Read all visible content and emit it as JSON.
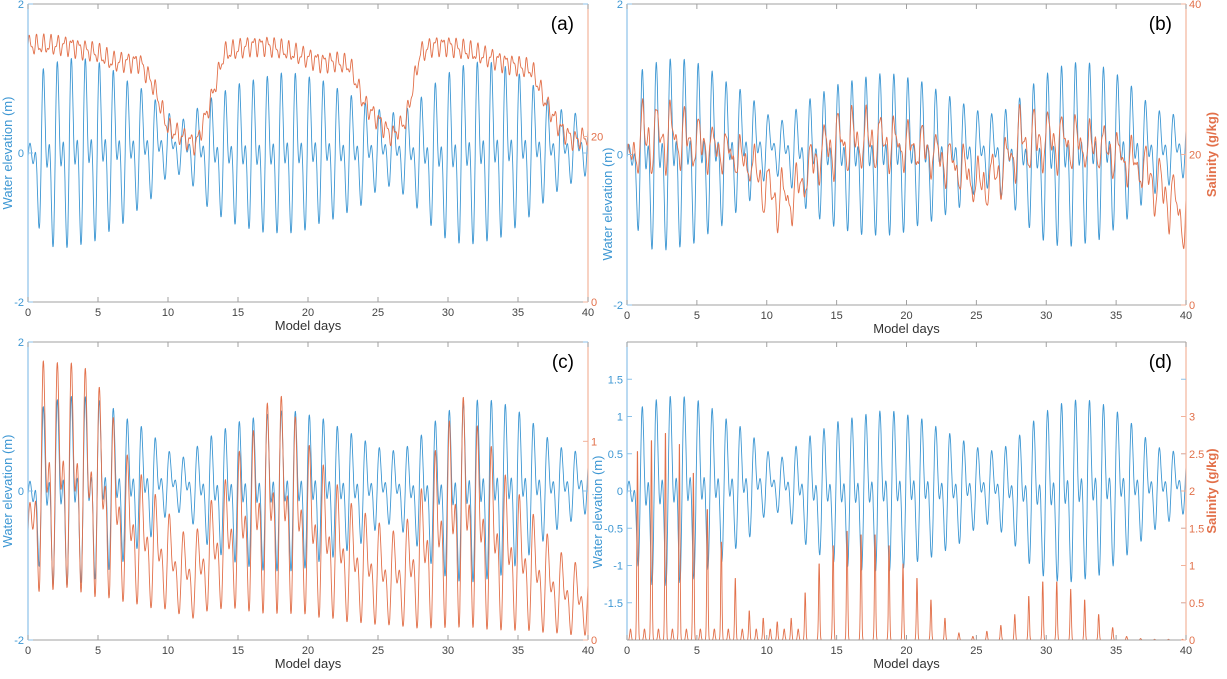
{
  "colors": {
    "water": "#3d97d3",
    "salinity": "#e2704a",
    "left_axis": "#8cc2e8",
    "right_axis": "#f2b39b",
    "frame": "#a0a0a0"
  },
  "chart_data": [
    {
      "panel": "(a)",
      "type": "line",
      "xlabel": "Model days",
      "ylabel_left": "Water elevation (m)",
      "ylabel_right": "",
      "xlim": [
        0,
        40
      ],
      "xticks": [
        0,
        5,
        10,
        15,
        20,
        25,
        30,
        35,
        40
      ],
      "ylim_left": [
        -2,
        2
      ],
      "yticks_left": [
        -2,
        0,
        2
      ],
      "ylim_right": [
        0,
        36
      ],
      "yticks_right": [
        0,
        20
      ],
      "series": [
        {
          "axis": "left",
          "kind": "tidal",
          "x_days": "daily 0-40",
          "daily_max": [
            0.0,
            1.15,
            1.25,
            1.3,
            1.3,
            1.25,
            1.15,
            1.0,
            0.9,
            0.75,
            0.55,
            0.45,
            0.6,
            0.75,
            0.85,
            0.95,
            1.0,
            1.05,
            1.1,
            1.1,
            1.05,
            1.0,
            0.9,
            0.8,
            0.7,
            0.6,
            0.55,
            0.6,
            0.75,
            0.95,
            1.1,
            1.2,
            1.25,
            1.25,
            1.2,
            1.1,
            0.95,
            0.75,
            0.6,
            0.55,
            0.5
          ],
          "daily_min": [
            -0.2,
            -1.25,
            -1.3,
            -1.3,
            -1.25,
            -1.2,
            -1.05,
            -0.95,
            -0.75,
            -0.6,
            -0.3,
            -0.3,
            -0.5,
            -0.8,
            -0.9,
            -1.0,
            -1.05,
            -1.1,
            -1.1,
            -1.1,
            -1.05,
            -0.95,
            -0.9,
            -0.8,
            -0.7,
            -0.5,
            -0.45,
            -0.6,
            -0.8,
            -1.05,
            -1.2,
            -1.25,
            -1.25,
            -1.2,
            -1.15,
            -1.0,
            -0.85,
            -0.65,
            -0.5,
            -0.4,
            -0.3
          ]
        },
        {
          "axis": "right",
          "kind": "smooth",
          "daily_value": [
            31,
            31,
            31,
            31,
            30.5,
            30,
            29,
            29,
            29,
            26,
            21,
            20,
            19,
            24,
            30,
            30.5,
            31,
            31,
            30.5,
            30,
            29.5,
            29,
            29,
            28.5,
            24,
            22,
            20,
            22,
            30,
            31,
            31,
            30.5,
            30,
            29.5,
            29,
            28.5,
            28,
            24,
            21,
            19.5,
            20
          ]
        }
      ]
    },
    {
      "panel": "(b)",
      "type": "line",
      "xlabel": "Model days",
      "ylabel_left": "Water elevation (m)",
      "ylabel_right": "Salinity (g/kg)",
      "xlim": [
        0,
        40
      ],
      "xticks": [
        0,
        5,
        10,
        15,
        20,
        25,
        30,
        35,
        40
      ],
      "ylim_left": [
        -2,
        2
      ],
      "yticks_left": [
        -2,
        0,
        2
      ],
      "ylim_right": [
        0,
        40
      ],
      "yticks_right": [
        0,
        20,
        40
      ],
      "series": [
        {
          "axis": "left",
          "kind": "tidal",
          "daily_max": [
            0.0,
            1.15,
            1.25,
            1.3,
            1.3,
            1.25,
            1.15,
            1.0,
            0.9,
            0.75,
            0.55,
            0.45,
            0.6,
            0.75,
            0.85,
            0.95,
            1.0,
            1.05,
            1.1,
            1.1,
            1.05,
            1.0,
            0.9,
            0.8,
            0.7,
            0.6,
            0.55,
            0.6,
            0.75,
            0.95,
            1.1,
            1.2,
            1.25,
            1.25,
            1.2,
            1.1,
            0.95,
            0.75,
            0.6,
            0.55,
            0.5
          ],
          "daily_min": [
            -0.2,
            -1.25,
            -1.3,
            -1.3,
            -1.25,
            -1.2,
            -1.05,
            -0.95,
            -0.75,
            -0.6,
            -0.3,
            -0.3,
            -0.5,
            -0.8,
            -0.9,
            -1.0,
            -1.05,
            -1.1,
            -1.1,
            -1.1,
            -1.05,
            -0.95,
            -0.9,
            -0.8,
            -0.7,
            -0.5,
            -0.45,
            -0.6,
            -0.8,
            -1.05,
            -1.2,
            -1.25,
            -1.25,
            -1.2,
            -1.15,
            -1.0,
            -0.85,
            -0.65,
            -0.5,
            -0.4,
            -0.3
          ]
        },
        {
          "axis": "right",
          "kind": "tidal",
          "daily_max": [
            20,
            27,
            27,
            27,
            26,
            25,
            24,
            23,
            22,
            21,
            19,
            18,
            18,
            21,
            24,
            26,
            26,
            26,
            25.5,
            25,
            24,
            24,
            23,
            22,
            21,
            19,
            20,
            22,
            26,
            26,
            26,
            25.5,
            25,
            24,
            24,
            23,
            22,
            21,
            20,
            18,
            15
          ],
          "daily_min": [
            18,
            17,
            17.5,
            18,
            18,
            18,
            18,
            18,
            17,
            16,
            11,
            10,
            11,
            15,
            17,
            17,
            17.5,
            18,
            18,
            18,
            18,
            18,
            17,
            16,
            15,
            13,
            13,
            15,
            17,
            17.5,
            18,
            18,
            18,
            18,
            18,
            17,
            16,
            15,
            11,
            10,
            7
          ]
        }
      ]
    },
    {
      "panel": "(c)",
      "type": "line",
      "xlabel": "Model days",
      "ylabel_left": "Water elevation (m)",
      "ylabel_right": "",
      "xlim": [
        0,
        40
      ],
      "xticks": [
        0,
        5,
        10,
        15,
        20,
        25,
        30,
        35,
        40
      ],
      "ylim_left": [
        -2,
        2
      ],
      "yticks_left": [
        -2,
        0,
        2
      ],
      "ylim_right": [
        0,
        1.5
      ],
      "yticks_right": [
        0,
        1
      ],
      "series": [
        {
          "axis": "left",
          "kind": "tidal",
          "daily_max": [
            0.0,
            1.15,
            1.25,
            1.3,
            1.3,
            1.25,
            1.15,
            1.0,
            0.9,
            0.75,
            0.55,
            0.45,
            0.6,
            0.75,
            0.85,
            0.95,
            1.0,
            1.05,
            1.1,
            1.1,
            1.05,
            1.0,
            0.9,
            0.8,
            0.7,
            0.6,
            0.55,
            0.6,
            0.75,
            0.95,
            1.1,
            1.2,
            1.25,
            1.25,
            1.2,
            1.1,
            0.95,
            0.75,
            0.6,
            0.55,
            0.5
          ],
          "daily_min": [
            -0.2,
            -1.25,
            -1.3,
            -1.3,
            -1.25,
            -1.2,
            -1.05,
            -0.95,
            -0.75,
            -0.6,
            -0.3,
            -0.3,
            -0.5,
            -0.8,
            -0.9,
            -1.0,
            -1.05,
            -1.1,
            -1.1,
            -1.1,
            -1.05,
            -0.95,
            -0.9,
            -0.8,
            -0.7,
            -0.5,
            -0.45,
            -0.6,
            -0.8,
            -1.05,
            -1.2,
            -1.25,
            -1.25,
            -1.2,
            -1.15,
            -1.0,
            -0.85,
            -0.65,
            -0.5,
            -0.4,
            -0.3
          ]
        },
        {
          "axis": "right",
          "kind": "tidal",
          "daily_max": [
            0.6,
            1.42,
            1.41,
            1.41,
            1.39,
            1.3,
            1.15,
            0.95,
            0.85,
            0.75,
            0.65,
            0.55,
            0.55,
            0.7,
            0.8,
            0.95,
            1.05,
            1.2,
            1.25,
            1.15,
            1.0,
            0.9,
            0.8,
            0.7,
            0.65,
            0.6,
            0.55,
            0.6,
            0.75,
            0.95,
            1.1,
            1.25,
            1.1,
            1.0,
            0.85,
            0.75,
            0.65,
            0.55,
            0.45,
            0.4,
            0.35
          ],
          "daily_min": [
            0.35,
            0.2,
            0.25,
            0.25,
            0.22,
            0.2,
            0.2,
            0.18,
            0.17,
            0.15,
            0.15,
            0.12,
            0.1,
            0.15,
            0.15,
            0.15,
            0.13,
            0.12,
            0.12,
            0.12,
            0.12,
            0.1,
            0.1,
            0.08,
            0.08,
            0.07,
            0.07,
            0.06,
            0.05,
            0.05,
            0.05,
            0.05,
            0.05,
            0.04,
            0.04,
            0.04,
            0.04,
            0.03,
            0.03,
            0.02,
            0.02
          ]
        }
      ]
    },
    {
      "panel": "(d)",
      "type": "line",
      "xlabel": "Model days",
      "ylabel_left": "Water elevation (m)",
      "ylabel_right": "Salinity (g/kg)",
      "xlim": [
        0,
        40
      ],
      "xticks": [
        0,
        5,
        10,
        15,
        20,
        25,
        30,
        35,
        40
      ],
      "ylim_left": [
        -2,
        2
      ],
      "yticks_left": [
        -1.5,
        -1,
        -0.5,
        0,
        0.5,
        1,
        1.5
      ],
      "ylim_right": [
        0,
        4
      ],
      "yticks_right": [
        0,
        0.5,
        1,
        1.5,
        2,
        2.5,
        3
      ],
      "series": [
        {
          "axis": "left",
          "kind": "tidal",
          "daily_max": [
            0.0,
            1.15,
            1.25,
            1.3,
            1.3,
            1.25,
            1.15,
            1.0,
            0.9,
            0.75,
            0.55,
            0.45,
            0.6,
            0.75,
            0.85,
            0.95,
            1.0,
            1.05,
            1.1,
            1.1,
            1.05,
            1.0,
            0.9,
            0.8,
            0.7,
            0.6,
            0.55,
            0.6,
            0.75,
            0.95,
            1.1,
            1.2,
            1.25,
            1.25,
            1.2,
            1.1,
            0.95,
            0.75,
            0.6,
            0.55,
            0.5
          ],
          "daily_min": [
            -0.2,
            -1.25,
            -1.3,
            -1.3,
            -1.25,
            -1.2,
            -1.05,
            -0.95,
            -0.75,
            -0.6,
            -0.3,
            -0.3,
            -0.5,
            -0.8,
            -0.9,
            -1.0,
            -1.05,
            -1.1,
            -1.1,
            -1.1,
            -1.05,
            -0.95,
            -0.9,
            -0.8,
            -0.7,
            -0.5,
            -0.45,
            -0.6,
            -0.8,
            -1.05,
            -1.2,
            -1.25,
            -1.25,
            -1.2,
            -1.15,
            -1.0,
            -0.85,
            -0.65,
            -0.5,
            -0.4,
            -0.3
          ]
        },
        {
          "axis": "right",
          "kind": "spikes",
          "daily_peak": [
            0.15,
            2.6,
            2.75,
            2.85,
            2.7,
            2.3,
            1.8,
            1.35,
            0.85,
            0.4,
            0.3,
            0.25,
            0.3,
            0.65,
            1.05,
            1.3,
            1.5,
            1.45,
            1.45,
            1.3,
            1.05,
            0.85,
            0.55,
            0.3,
            0.1,
            0.05,
            0.12,
            0.2,
            0.35,
            0.6,
            0.8,
            0.8,
            0.7,
            0.55,
            0.35,
            0.17,
            0.05,
            0.02,
            0.01,
            0.01,
            0.01
          ]
        }
      ]
    }
  ]
}
